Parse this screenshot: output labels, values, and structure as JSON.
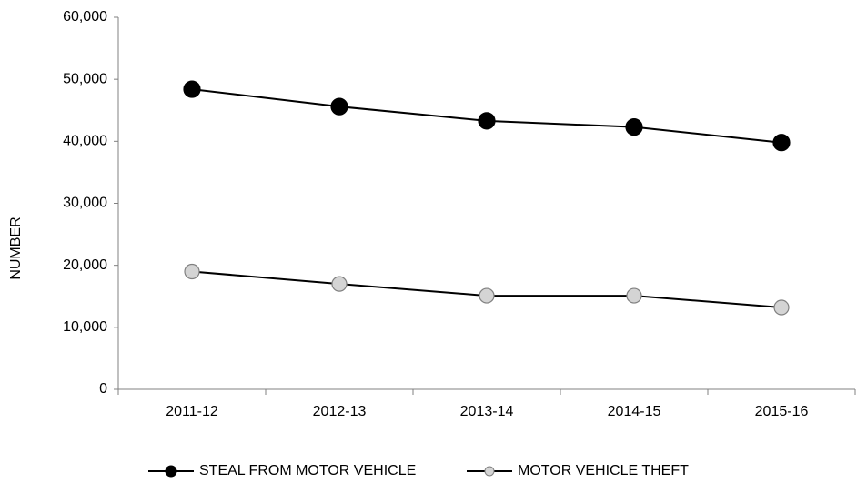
{
  "chart_data": {
    "type": "line",
    "y_label": "NUMBER",
    "categories": [
      "2011-12",
      "2012-13",
      "2013-14",
      "2014-15",
      "2015-16"
    ],
    "series": [
      {
        "name": "STEAL FROM MOTOR VEHICLE",
        "color": "#000000",
        "values": [
          48400,
          45600,
          43300,
          42300,
          39800
        ]
      },
      {
        "name": "MOTOR VEHICLE THEFT",
        "color": "#d4d4d4",
        "values": [
          19000,
          17000,
          15100,
          15100,
          13200
        ]
      }
    ],
    "ylim": [
      0,
      60000
    ],
    "yticks": [
      0,
      {
        "value": 10000,
        "label": "10,000"
      },
      {
        "value": 20000,
        "label": "20,000"
      },
      {
        "value": 30000,
        "label": "30,000"
      },
      {
        "value": 40000,
        "label": "40,000"
      },
      {
        "value": 50000,
        "label": "50,000"
      },
      {
        "value": 60000,
        "label": "60,000"
      }
    ],
    "grid": false,
    "legend": "bottom"
  }
}
